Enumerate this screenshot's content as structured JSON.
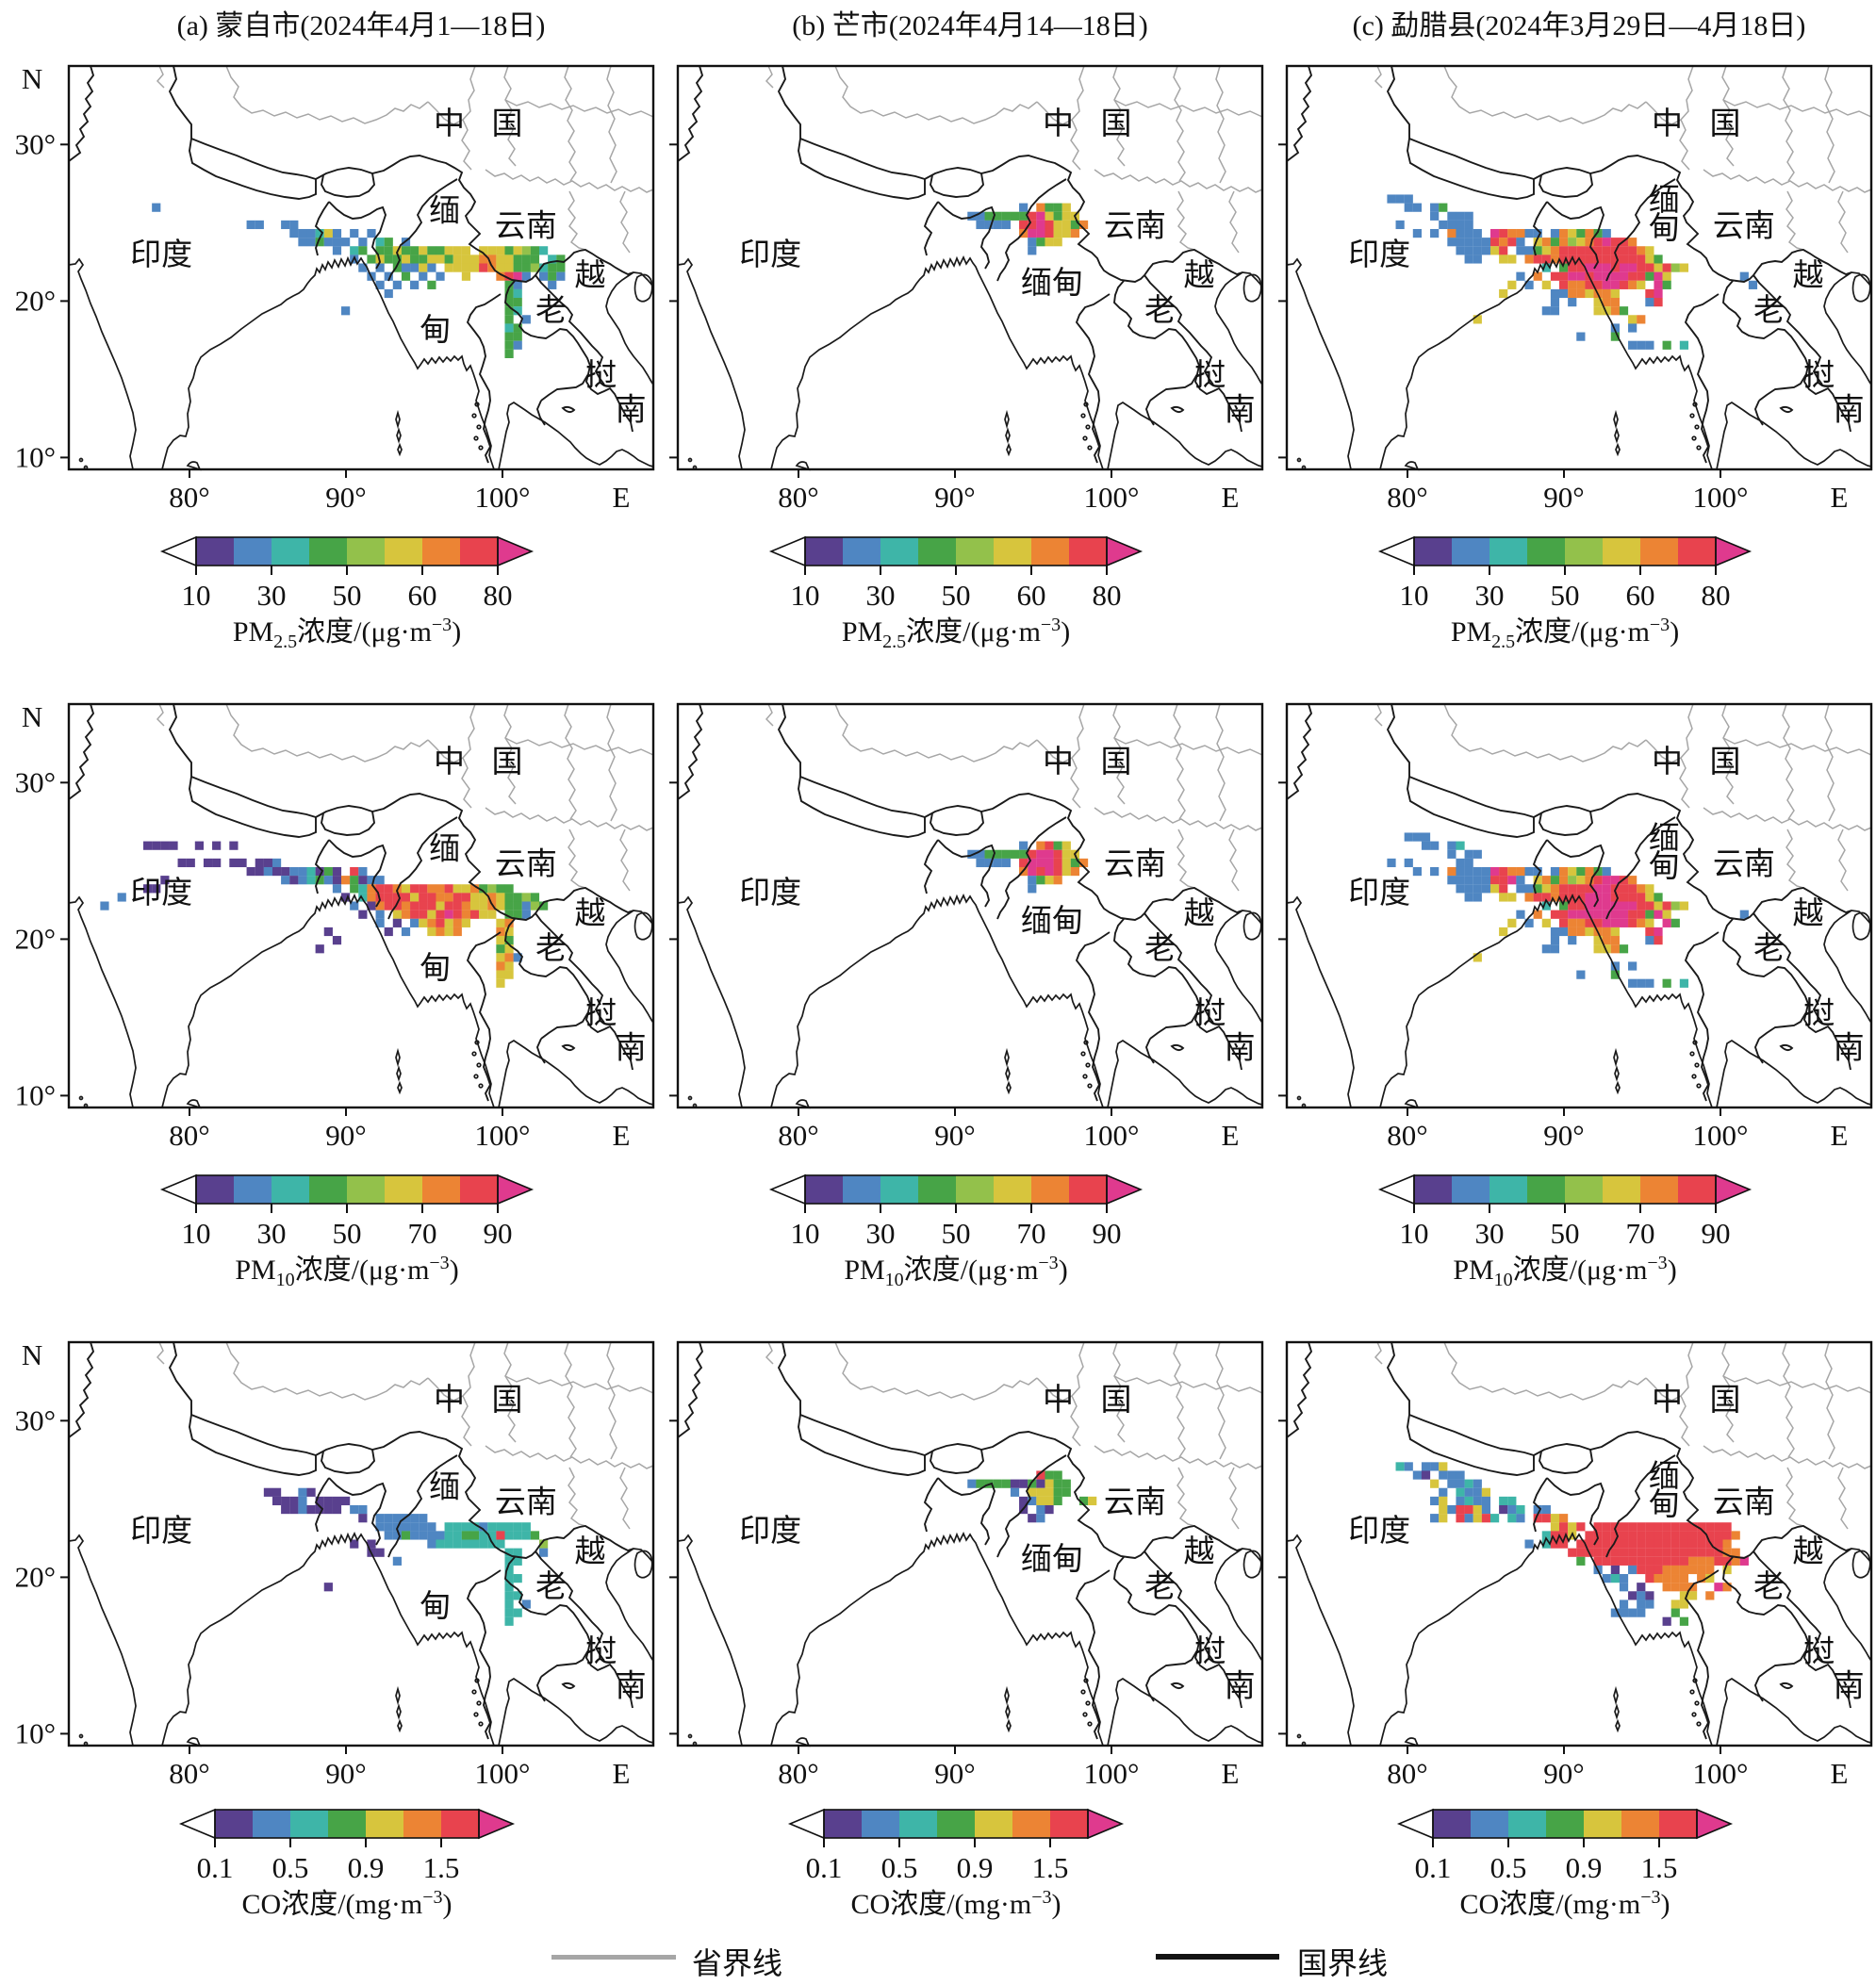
{
  "figure": {
    "titles": [
      "(a) 蒙自市(2024年4月1—18日)",
      "(b) 芒市(2024年4月14—18日)",
      "(c) 勐腊县(2024年3月29日—4月18日)"
    ]
  },
  "legend": {
    "province": "省界线",
    "national": "国界线"
  },
  "axis": {
    "north": "N",
    "east": "E",
    "lat_ticks": [
      "30°",
      "20°",
      "10°"
    ],
    "lon_ticks": [
      "80°",
      "90°",
      "100°"
    ]
  },
  "palette": {
    "P": "#59408e",
    "B": "#4f86c2",
    "T": "#3eb5a8",
    "G": "#47a447",
    "L": "#93c14b",
    "Y": "#d7c53d",
    "O": "#ec8434",
    "R": "#e8434e",
    "M": "#df3a8e"
  },
  "colorbars": [
    {
      "ticks": [
        "10",
        "30",
        "50",
        "60",
        "80"
      ],
      "segments": [
        "P",
        "B",
        "T",
        "G",
        "L",
        "Y",
        "O",
        "R"
      ],
      "caption": {
        "main": "PM",
        "sub": "2.5",
        "mid": "浓度/(μg·m",
        "sup": "−3",
        "end": ")"
      }
    },
    {
      "ticks": [
        "10",
        "30",
        "50",
        "70",
        "90"
      ],
      "segments": [
        "P",
        "B",
        "T",
        "G",
        "L",
        "Y",
        "O",
        "R"
      ],
      "caption": {
        "main": "PM",
        "sub": "10",
        "mid": "浓度/(μg·m",
        "sup": "−3",
        "end": ")"
      }
    },
    {
      "ticks": [
        "0.1",
        "0.5",
        "0.9",
        "1.5"
      ],
      "segments": [
        "P",
        "B",
        "T",
        "G",
        "Y",
        "O",
        "R"
      ],
      "caption": {
        "main": "CO",
        "sub": "",
        "mid": "浓度/(mg·m",
        "sup": "−3",
        "end": ")"
      }
    }
  ],
  "map_labels": {
    "common": [
      {
        "t": "中",
        "lon": 96.6,
        "lat": 31.3
      },
      {
        "t": "国",
        "lon": 100.3,
        "lat": 31.3
      },
      {
        "t": "印度",
        "lon": 78.2,
        "lat": 22.9
      },
      {
        "t": "云南",
        "lon": 101.5,
        "lat": 24.75
      },
      {
        "t": "越",
        "lon": 105.6,
        "lat": 21.6
      },
      {
        "t": "老",
        "lon": 103.1,
        "lat": 19.35
      },
      {
        "t": "挝",
        "lon": 106.3,
        "lat": 15.2
      },
      {
        "t": "南",
        "lon": 108.2,
        "lat": 13.0
      }
    ],
    "a": [
      {
        "t": "缅",
        "lon": 96.3,
        "lat": 25.7
      },
      {
        "t": "甸",
        "lon": 95.7,
        "lat": 18.1
      }
    ],
    "b": [
      {
        "t": "缅甸",
        "lon": 96.2,
        "lat": 21.1
      }
    ],
    "c": [
      {
        "t": "缅",
        "lon": 96.4,
        "lat": 26.4
      },
      {
        "t": "甸",
        "lon": 96.4,
        "lat": 24.6
      }
    ]
  },
  "panels": [
    {
      "id": "a-pm25",
      "row": 0,
      "col": 0,
      "cells": [
        [
          15,
          12,
          "B"
        ],
        [
          17,
          23,
          "BB..BB"
        ],
        [
          18,
          28,
          "BBBTYB.B.B"
        ],
        [
          19,
          29,
          "BBGBBB.B.TG.B"
        ],
        [
          20,
          33,
          "B.TG.GGYGGYGGYYY.YYYGYLGT"
        ],
        [
          21,
          35,
          "B.GYGGYGGYYGYYYOOYYGGG"
        ],
        [
          21,
          58,
          "TG"
        ],
        [
          22,
          36,
          "B.B.GBBYB.YYYYROYYGGLT"
        ],
        [
          22,
          58,
          "GG"
        ],
        [
          23,
          37,
          "B.B.G.B.B..Y...ORMB"
        ],
        [
          23,
          57,
          "BGB"
        ],
        [
          24,
          38,
          "B.B.B.G........GB"
        ],
        [
          24,
          58,
          "B"
        ],
        [
          25,
          39,
          "B.............GT"
        ],
        [
          26,
          53,
          "GG"
        ],
        [
          27,
          34,
          "B..................GT"
        ],
        [
          28,
          53,
          "G.B"
        ],
        [
          29,
          53,
          "TG"
        ],
        [
          30,
          53,
          "GG"
        ],
        [
          31,
          53,
          "GB"
        ],
        [
          32,
          53,
          "G"
        ]
      ]
    },
    {
      "id": "b-pm25",
      "row": 0,
      "col": 1,
      "cells": [
        [
          15,
          42,
          "B.OGGY"
        ],
        [
          16,
          36,
          "BBGGGGGRMYGYY"
        ],
        [
          17,
          37,
          "BBBB.RRMRYYGO"
        ],
        [
          18,
          42,
          "OMMRYYO"
        ],
        [
          19,
          43,
          "BGYY"
        ],
        [
          20,
          43,
          "B"
        ]
      ]
    },
    {
      "id": "c-pm25",
      "row": 0,
      "col": 2,
      "cells": [
        [
          14,
          14,
          "BBB"
        ],
        [
          15,
          16,
          "BB.BG"
        ],
        [
          16,
          19,
          "B.BBB"
        ],
        [
          17,
          15,
          "B"
        ],
        [
          17,
          20,
          "BBBB"
        ],
        [
          18,
          17,
          "B.B.OBBB.MROOBB.BOYGOGB"
        ],
        [
          19,
          21,
          "BBBBBRORB.YOGOLYORMRRO"
        ],
        [
          20,
          22,
          "BBBBYR.BBGYORRRRRRRRROY"
        ],
        [
          21,
          23,
          "BB..YY.ORRORRRRRRRRRRYG"
        ],
        [
          22,
          32,
          "T.GRRMMMRMMRRYRLY"
        ],
        [
          23,
          29,
          "B.O.RRMMRMMMMRRGMY"
        ],
        [
          23,
          55,
          "B"
        ],
        [
          24,
          28,
          "Y.B.Y.ROORRMMROY.MG"
        ],
        [
          24,
          56,
          "B"
        ],
        [
          25,
          27,
          "Y.....BBOOYOOY...RM"
        ],
        [
          26,
          33,
          "B.B..YOO...BR"
        ],
        [
          27,
          32,
          "BB....YYOG"
        ],
        [
          28,
          24,
          "Y"
        ],
        [
          28,
          42,
          "YO"
        ],
        [
          29,
          40,
          "B.B"
        ],
        [
          30,
          36,
          "B...G"
        ],
        [
          31,
          42,
          "BBB.G.T"
        ]
      ]
    },
    {
      "id": "a-pm10",
      "row": 1,
      "col": 0,
      "cells": [
        [
          15,
          11,
          "PPPP..P.P.P"
        ],
        [
          17,
          15,
          "PP.PP.PP.PPB"
        ],
        [
          18,
          23,
          "PPBPPBBTPGP.RB"
        ],
        [
          19,
          13,
          "P"
        ],
        [
          19,
          27,
          "BPBTGBPOGPBB"
        ],
        [
          20,
          11,
          "PP"
        ],
        [
          20,
          33,
          "B.GTORROYRROORYYOGLGG"
        ],
        [
          21,
          8,
          "B"
        ],
        [
          21,
          34,
          "P.TORRRRYRROORRYYOYGGLG"
        ],
        [
          22,
          6,
          "B"
        ],
        [
          22,
          35,
          "B.PORRORRRYRROYYOYGGBLG"
        ],
        [
          23,
          36,
          "P.B.YORRYRMRORYY.GGB"
        ],
        [
          24,
          38,
          "B.P.BYORYOY"
        ],
        [
          24,
          52,
          "YO"
        ],
        [
          25,
          32,
          "P"
        ],
        [
          25,
          39,
          "P.B..YOYO"
        ],
        [
          25,
          52,
          "OY"
        ],
        [
          26,
          33,
          "P"
        ],
        [
          26,
          52,
          "YG"
        ],
        [
          27,
          31,
          "P"
        ],
        [
          27,
          52,
          "GY"
        ],
        [
          28,
          52,
          "YO"
        ],
        [
          28,
          54,
          "B"
        ],
        [
          29,
          52,
          "OY"
        ],
        [
          30,
          52,
          "YY"
        ],
        [
          31,
          52,
          "Y"
        ]
      ]
    },
    {
      "id": "b-pm10",
      "row": 1,
      "col": 1,
      "cells": [
        [
          15,
          42,
          "B.ORGY"
        ],
        [
          16,
          36,
          "BBGGGGGRMMRYY"
        ],
        [
          17,
          37,
          "BBBB.RMMMRYGO"
        ],
        [
          18,
          42,
          "OMRMRYO"
        ],
        [
          19,
          43,
          "BGYO"
        ],
        [
          20,
          43,
          "B"
        ]
      ]
    },
    {
      "id": "c-pm10",
      "row": 1,
      "col": 2,
      "cells": [
        [
          14,
          16,
          "BBB"
        ],
        [
          15,
          18,
          "BB.BT"
        ],
        [
          16,
          21,
          "B.BB"
        ],
        [
          17,
          14,
          "B.B"
        ],
        [
          17,
          22,
          "BB"
        ],
        [
          18,
          17,
          "B.B.OBBBBMROOBB.BOYGOGB"
        ],
        [
          19,
          21,
          "BBBBBRRMB.YOGOLYORMMRO"
        ],
        [
          20,
          22,
          "BBBBYR.BBGYORRRRMMRRROY"
        ],
        [
          21,
          23,
          "BB..YY.ORRORRRMMMRRRRYG"
        ],
        [
          22,
          32,
          "T.GRRMMMMMMRRYRLY"
        ],
        [
          23,
          29,
          "B.O.RRMMMMMMMRRGMY"
        ],
        [
          23,
          55,
          "B"
        ],
        [
          24,
          28,
          "Y.B.Y.ROORRMMMROY.MG"
        ],
        [
          25,
          27,
          "Y.....BBOOYOOY...RM"
        ],
        [
          26,
          33,
          "B.B..YOO...BR"
        ],
        [
          27,
          32,
          "BB....YYOG"
        ],
        [
          28,
          24,
          "Y"
        ],
        [
          29,
          40,
          "B.B"
        ],
        [
          30,
          36,
          "B...G"
        ],
        [
          31,
          42,
          "BBB.G.T"
        ]
      ]
    },
    {
      "id": "a-co",
      "row": 2,
      "col": 0,
      "cells": [
        [
          16,
          25,
          "PP"
        ],
        [
          16,
          29,
          "BP"
        ],
        [
          17,
          26,
          "PPPB.PPPP"
        ],
        [
          18,
          27,
          "PPBPPPP.BB"
        ],
        [
          19,
          36,
          "P.BBBBBB"
        ],
        [
          20,
          38,
          "BBBBBBB.TTTTBTTTTT"
        ],
        [
          21,
          39,
          "BBGBBBB"
        ],
        [
          21,
          46,
          "TTGGTTRTTTG"
        ],
        [
          22,
          44,
          "BTTTTTTTT"
        ],
        [
          22,
          57,
          "L"
        ],
        [
          22,
          35,
          "P.P"
        ],
        [
          23,
          37,
          "PP"
        ],
        [
          23,
          53,
          "TT"
        ],
        [
          23,
          57,
          "B"
        ],
        [
          24,
          40,
          "B"
        ],
        [
          24,
          53,
          "TT"
        ],
        [
          25,
          53,
          "T"
        ],
        [
          26,
          53,
          "TT"
        ],
        [
          27,
          32,
          "P"
        ],
        [
          27,
          53,
          "T"
        ],
        [
          28,
          53,
          "TT"
        ],
        [
          29,
          53,
          "T.B"
        ],
        [
          30,
          53,
          "TT"
        ],
        [
          31,
          53,
          "T"
        ]
      ]
    },
    {
      "id": "b-co",
      "row": 2,
      "col": 1,
      "cells": [
        [
          14,
          44,
          "RGG"
        ],
        [
          15,
          36,
          "BGGGGPPGPYGG"
        ],
        [
          16,
          41,
          "B.YYYGG"
        ],
        [
          17,
          42,
          "PBYYG..GY"
        ],
        [
          18,
          42,
          "P.BP"
        ],
        [
          19,
          43,
          "PB"
        ]
      ]
    },
    {
      "id": "c-co",
      "row": 2,
      "col": 2,
      "cells": [
        [
          13,
          15,
          "TB.BBY"
        ],
        [
          14,
          17,
          "BP.BBB"
        ],
        [
          15,
          19,
          "Y.BBTB"
        ],
        [
          16,
          20,
          "B.TBBY"
        ],
        [
          17,
          19,
          "BY.BTBB.TT"
        ],
        [
          18,
          20,
          "YBRRYB.PBT.BB"
        ],
        [
          19,
          19,
          "BY.RBYRT.TB.RRYO"
        ],
        [
          20,
          33,
          "YRYR.RRRRRRRRRRRRRRRR"
        ],
        [
          21,
          32,
          "TRRY.RRRRRRRRRRRRRRRRRO"
        ],
        [
          22,
          30,
          "B.TRR.RRRRRRRRRRRRRRRRRO"
        ],
        [
          23,
          35,
          "RRRRRRRRRRRRRRRRRROO"
        ],
        [
          24,
          36,
          "G.RRRRRRRRRRROOORROM"
        ],
        [
          25,
          38,
          "B.P.BRRROOOOOO.Y"
        ],
        [
          26,
          39,
          "BTB..ROOOO.OY"
        ],
        [
          27,
          41,
          "B.P..OOOO..MO"
        ],
        [
          28,
          42,
          "PBP...YY.O"
        ],
        [
          29,
          41,
          "B.BB..YY"
        ],
        [
          30,
          40,
          "BBBB...G"
        ],
        [
          31,
          46,
          "P.G"
        ]
      ]
    }
  ],
  "chart_data": {
    "type": "heatmap",
    "title": "Backward-trajectory related pollutant concentration maps",
    "panel_titles": [
      "(a) 蒙自市(2024年4月1—18日)",
      "(b) 芒市(2024年4月14—18日)",
      "(c) 勐腊县(2024年3月29日—4月18日)"
    ],
    "rows": [
      {
        "variable": "PM2.5",
        "caption": "PM2.5浓度/(μg·m−3)",
        "tick_values": [
          10,
          30,
          50,
          60,
          80
        ],
        "n_segments": 8
      },
      {
        "variable": "PM10",
        "caption": "PM10浓度/(μg·m−3)",
        "tick_values": [
          10,
          30,
          50,
          70,
          90
        ],
        "n_segments": 8
      },
      {
        "variable": "CO",
        "caption": "CO浓度/(mg·m−3)",
        "tick_values": [
          0.1,
          0.5,
          0.9,
          1.5
        ],
        "n_segments": 7
      }
    ],
    "axes": {
      "lon_ticks_deg_E": [
        80,
        90,
        100
      ],
      "lat_ticks_deg_N": [
        30,
        20,
        10
      ],
      "lon_range": [
        72.3,
        109.6
      ],
      "lat_range": [
        9.2,
        35.0
      ]
    },
    "legend": [
      {
        "label": "省界线",
        "style": "gray line"
      },
      {
        "label": "国界线",
        "style": "black line"
      }
    ],
    "cell_grid": {
      "origin_lon": 71.0,
      "origin_lat_top": 34.5,
      "cell_deg": 0.55,
      "note": "cells arrays are [row_j, start_col_i, color-string]; colors keyed by palette letters"
    }
  }
}
